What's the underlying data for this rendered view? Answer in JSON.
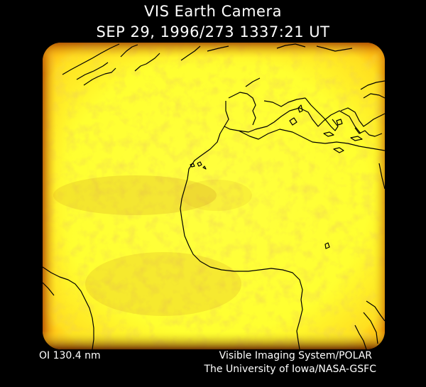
{
  "header": {
    "title": "VIS Earth Camera",
    "timestamp": "SEP 29, 1996/273 1337:21 UT"
  },
  "image": {
    "description_name": "earth-camera-image",
    "colors": {
      "disk": "#ffff33",
      "edge": "#e08a00",
      "mottle": "#d8a020",
      "coast": "#000000",
      "background": "#000000"
    }
  },
  "footer": {
    "filter": "OI  130.4 nm",
    "instrument": "Visible Imaging System/POLAR",
    "institution": "The University of Iowa/NASA-GSFC"
  }
}
